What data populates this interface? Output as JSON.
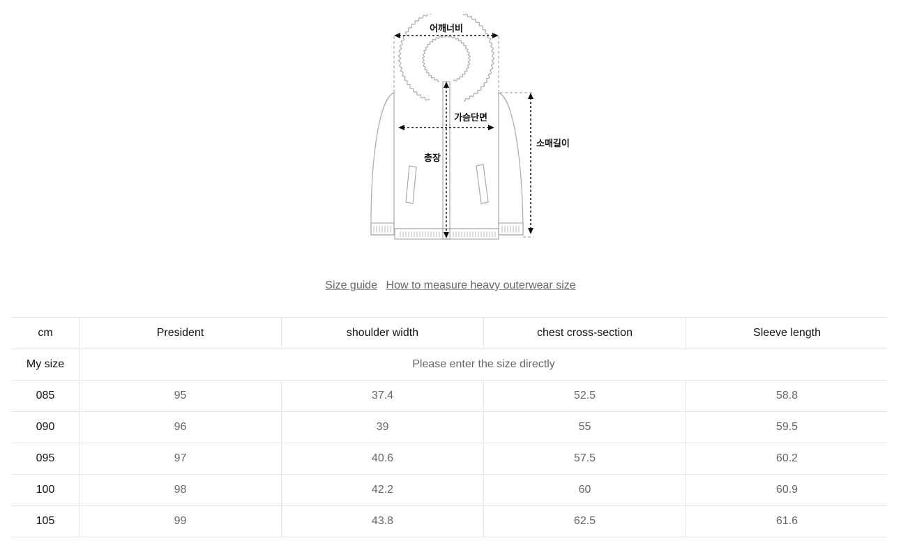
{
  "diagram": {
    "labels": {
      "shoulder": "어깨너비",
      "chest": "가슴단면",
      "length": "총장",
      "sleeve": "소매길이"
    }
  },
  "links": {
    "size_guide": "Size guide",
    "how_to_measure": "How to measure heavy outerwear size"
  },
  "table": {
    "headers": [
      "cm",
      "President",
      "shoulder width",
      "chest cross-section",
      "Sleeve length"
    ],
    "my_size": {
      "label": "My size",
      "placeholder": "Please enter the size directly"
    },
    "rows": [
      [
        "085",
        "95",
        "37.4",
        "52.5",
        "58.8"
      ],
      [
        "090",
        "96",
        "39",
        "55",
        "59.5"
      ],
      [
        "095",
        "97",
        "40.6",
        "57.5",
        "60.2"
      ],
      [
        "100",
        "98",
        "42.2",
        "60",
        "60.9"
      ],
      [
        "105",
        "99",
        "43.8",
        "62.5",
        "61.6"
      ]
    ]
  }
}
